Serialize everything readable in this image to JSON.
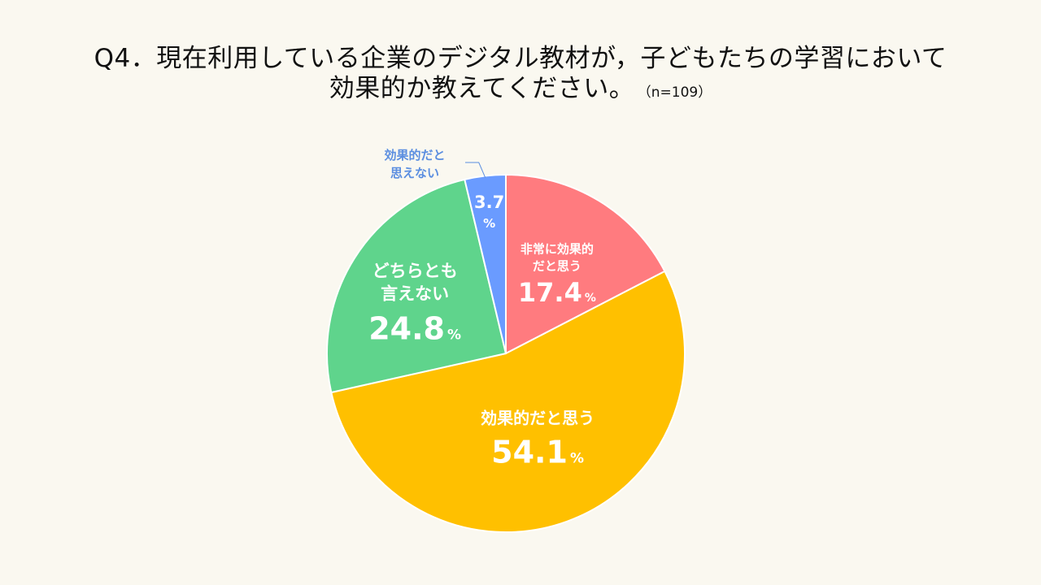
{
  "title": {
    "line1": "Q4．現在利用している企業のデジタル教材が，子どもたちの学習において",
    "line2": "効果的か教えてください。",
    "sample": "（n=109）"
  },
  "chart_data": {
    "type": "pie",
    "unit": "%",
    "slices": [
      {
        "label_lines": [
          "非常に効果的",
          "だと思う"
        ],
        "value": 17.4,
        "value_text": "17.4",
        "color": "#ff7b7f"
      },
      {
        "label_lines": [
          "効果的だと思う"
        ],
        "value": 54.1,
        "value_text": "54.1",
        "color": "#ffc000"
      },
      {
        "label_lines": [
          "どちらとも",
          "言えない"
        ],
        "value": 24.8,
        "value_text": "24.8",
        "color": "#5fd48c"
      },
      {
        "label_lines": [
          "効果的だと",
          "思えない"
        ],
        "value": 3.7,
        "value_text": "3.7",
        "color": "#6a9bff"
      }
    ],
    "label_color": "#ffffff",
    "outside_label_color": "#5b8ee0",
    "background": "#faf8f0"
  }
}
